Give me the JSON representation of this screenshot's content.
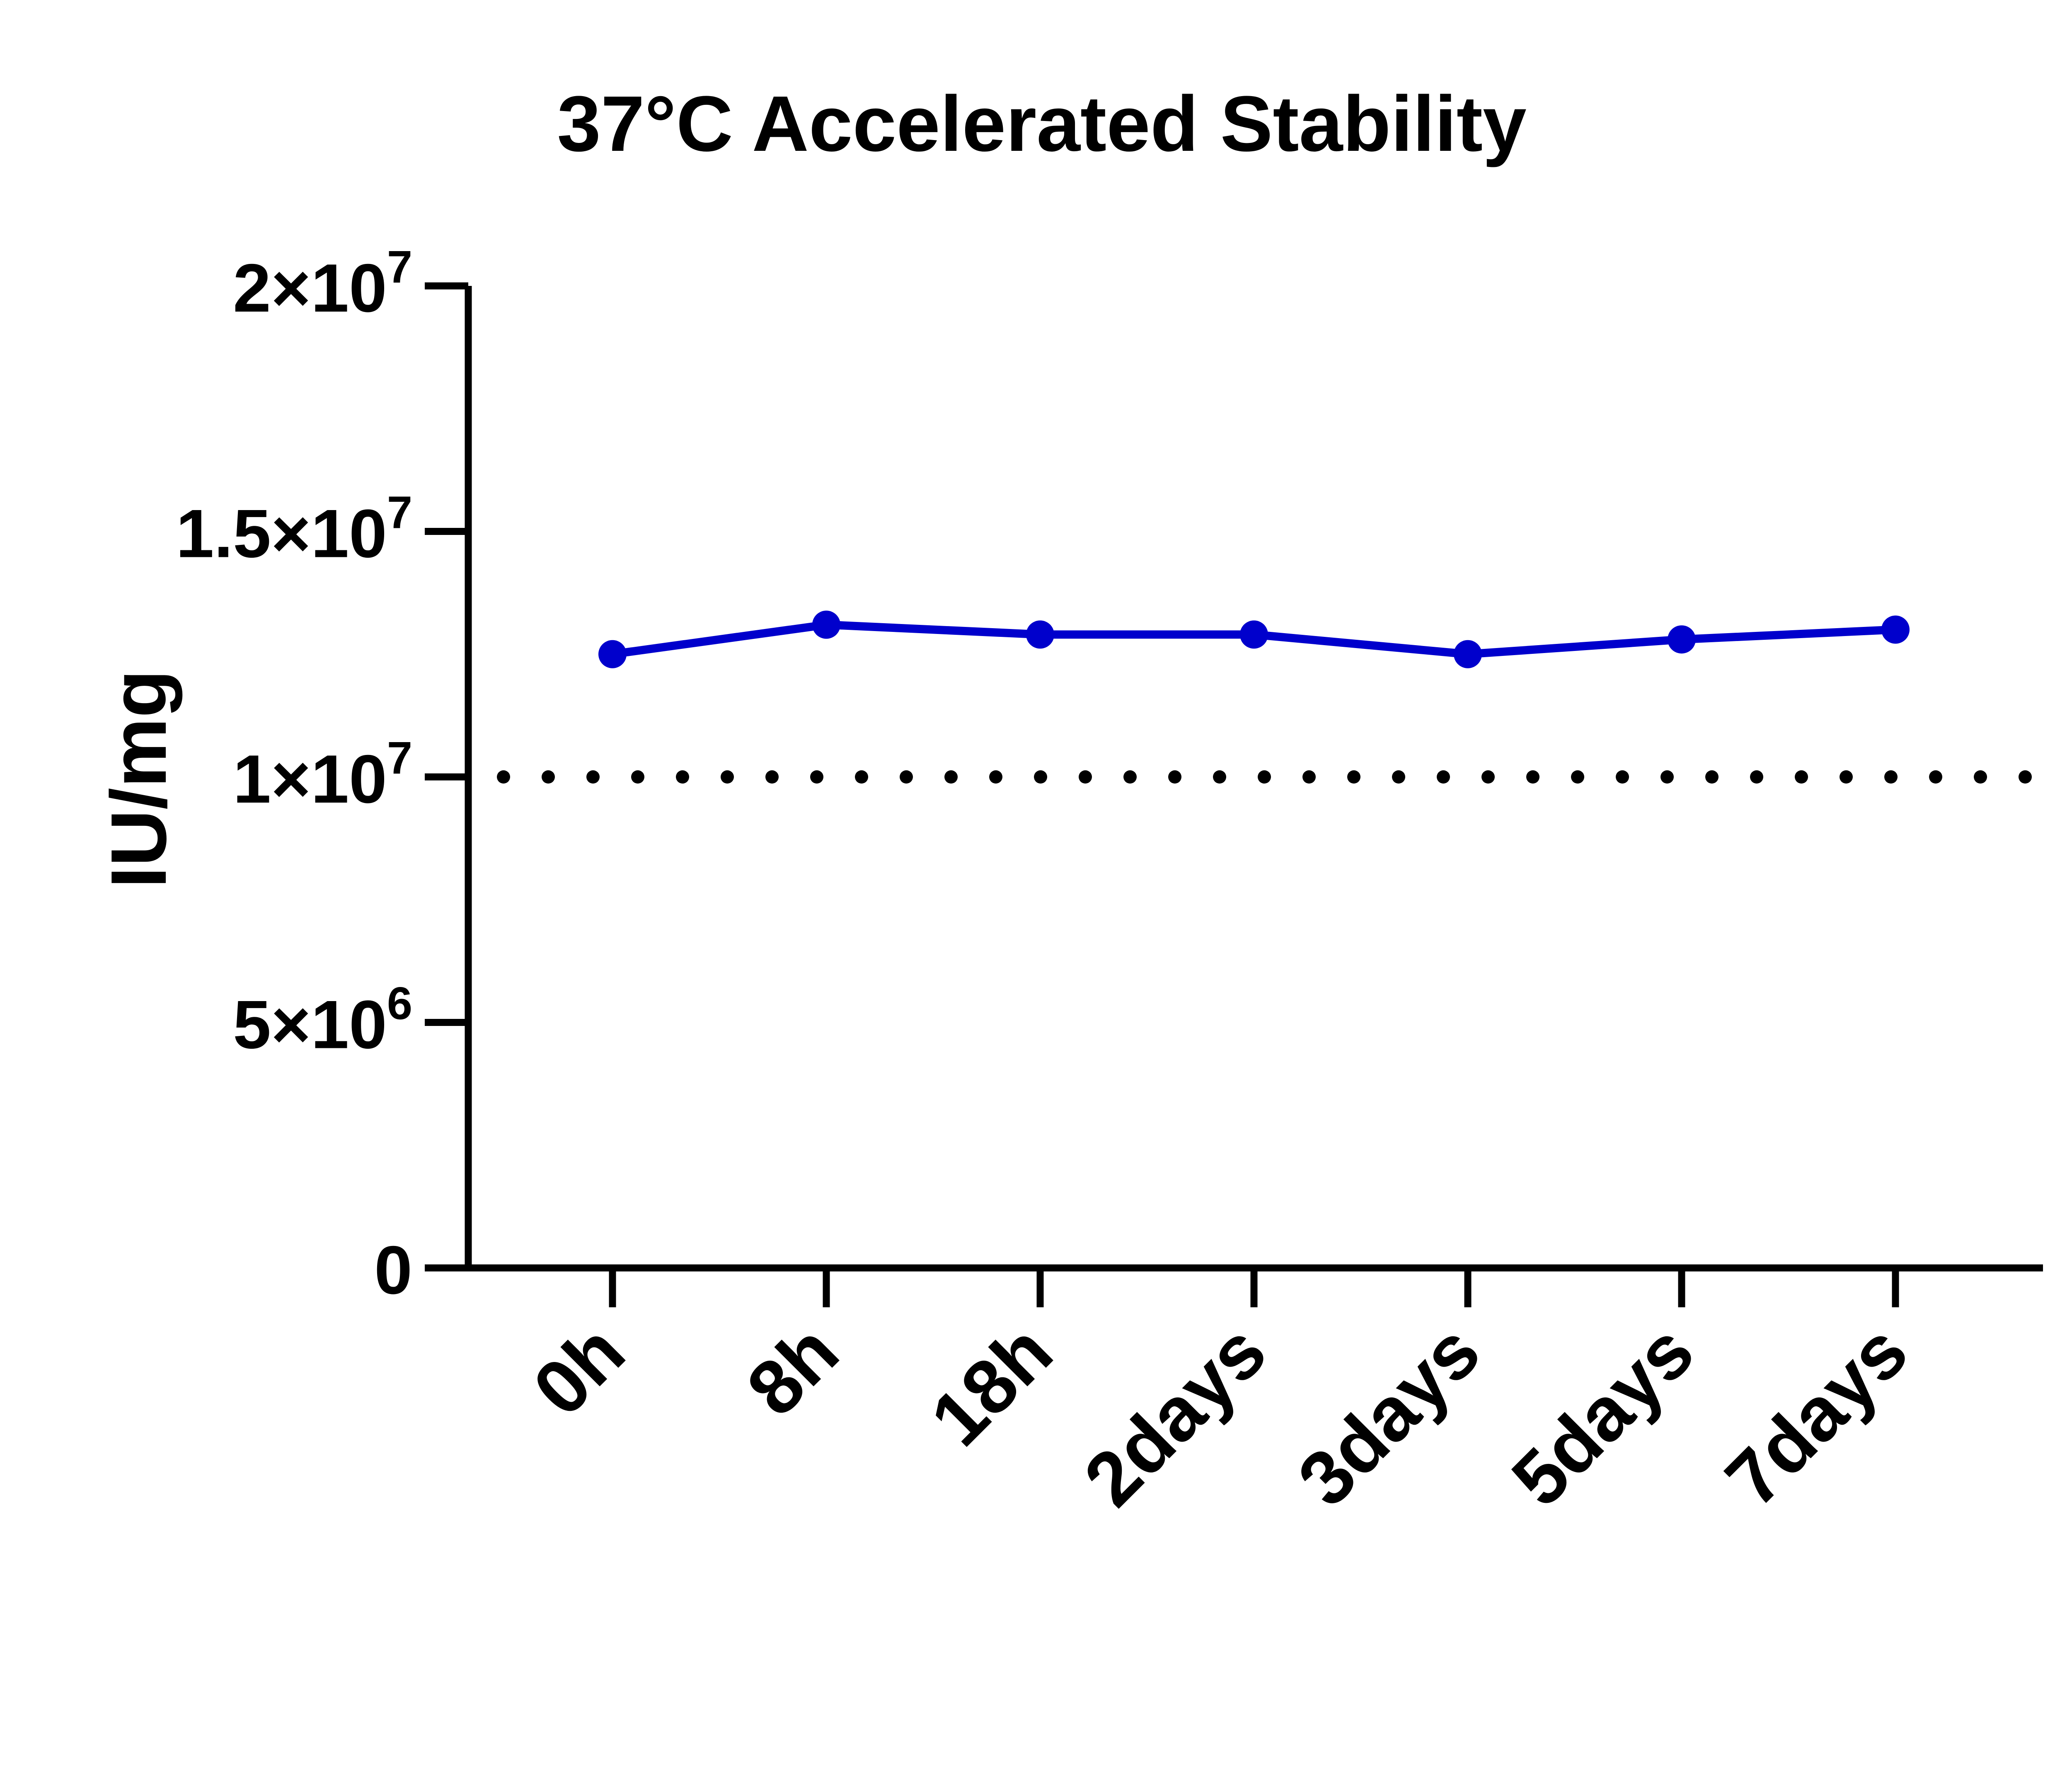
{
  "chart_data": {
    "type": "line",
    "title": "37°C Accelerated Stability",
    "xlabel": "",
    "ylabel": "IU/mg",
    "categories": [
      "0h",
      "8h",
      "18h",
      "2days",
      "3days",
      "5days",
      "7days"
    ],
    "series": [
      {
        "values": [
          12500000,
          13100000,
          12900000,
          12900000,
          12500000,
          12800000,
          13000000
        ],
        "color": "#0000CC"
      }
    ],
    "ylim": [
      0,
      20000000
    ],
    "yticks": [
      {
        "value": 0,
        "mantissa": "0",
        "exponent": ""
      },
      {
        "value": 5000000,
        "mantissa": "5×10",
        "exponent": "6"
      },
      {
        "value": 10000000,
        "mantissa": "1×10",
        "exponent": "7"
      },
      {
        "value": 15000000,
        "mantissa": "1.5×10",
        "exponent": "7"
      },
      {
        "value": 20000000,
        "mantissa": "2×10",
        "exponent": "7"
      }
    ],
    "reference_line": {
      "value": 10000000,
      "style": "dotted"
    },
    "grid": false,
    "legend": "none"
  }
}
